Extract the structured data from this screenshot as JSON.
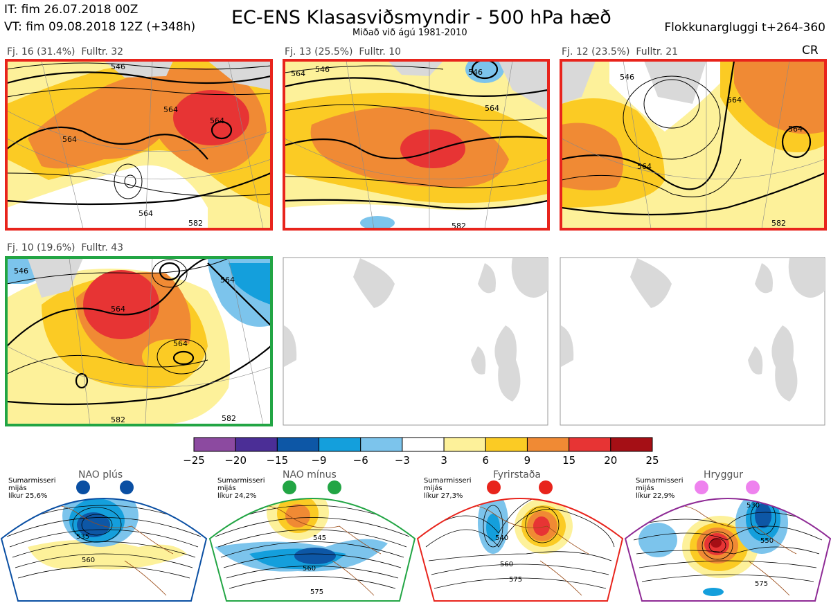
{
  "header": {
    "initial_time": "IT: fim 26.07.2018 00Z",
    "valid_time": "VT: fim 09.08.2018 12Z  (+348h)",
    "title": "EC-ENS Klasasviðsmyndir - 500 hPa hæð",
    "subtitle": "Miðað við ágú 1981-2010",
    "window": "Flokkunargluggi t+264-360",
    "badge": "CR"
  },
  "colors": {
    "map_frame_red": "#e8241c",
    "map_frame_green": "#22a544",
    "nao_plus": "#0a4fa3",
    "nao_minus": "#22a544",
    "blocking": "#e8241c",
    "ridge": "#8e2a95",
    "coastline": "#9a4b17"
  },
  "panels": [
    {
      "label": "Fj. 16 (31.4%)",
      "members": "Fulltr. 32",
      "frame": "red",
      "contours": [
        "546",
        "564",
        "564",
        "564",
        "564",
        "582"
      ]
    },
    {
      "label": "Fj. 13 (25.5%)",
      "members": "Fulltr. 10",
      "frame": "red",
      "contours": [
        "564",
        "546",
        "546",
        "564",
        "582"
      ]
    },
    {
      "label": "Fj. 12 (23.5%)",
      "members": "Fulltr. 21",
      "frame": "red",
      "contours": [
        "546",
        "564",
        "564",
        "564",
        "582"
      ]
    },
    {
      "label": "Fj. 10 (19.6%)",
      "members": "Fulltr. 43",
      "frame": "green",
      "contours": [
        "546",
        "564",
        "564",
        "564",
        "582",
        "582"
      ]
    }
  ],
  "colorbar": {
    "ticks": [
      "−25",
      "−20",
      "−15",
      "−9",
      "−6",
      "−3",
      "3",
      "6",
      "9",
      "15",
      "20",
      "25"
    ],
    "colors": [
      "#8c4aa0",
      "#4b2e96",
      "#0d57a6",
      "#149fdc",
      "#7cc4ec",
      "#ffffff",
      "#fdf19a",
      "#fbcb24",
      "#f08a34",
      "#e73434",
      "#a50f15"
    ]
  },
  "regimes": [
    {
      "name": "NAO plús",
      "season": "Sumarmisseri",
      "text": "mijás",
      "probability": "líkur 25,6%",
      "contours": [
        "535",
        "560"
      ]
    },
    {
      "name": "NAO mínus",
      "season": "Sumarmisseri",
      "text": "mijás",
      "probability": "líkur 24,2%",
      "contours": [
        "545",
        "560",
        "575"
      ]
    },
    {
      "name": "Fyrirstaða",
      "season": "Sumarmisseri",
      "text": "mijás",
      "probability": "líkur 27,3%",
      "contours": [
        "540",
        "560",
        "575"
      ]
    },
    {
      "name": "Hryggur",
      "season": "Sumarmisseri",
      "text": "mijás",
      "probability": "líkur 22,9%",
      "contours": [
        "530",
        "550",
        "575"
      ]
    }
  ],
  "chart_data": {
    "type": "heatmap",
    "title": "EC-ENS Klasasviðsmyndir - 500 hPa hæð",
    "subtitle": "Miðað við ágú 1981-2010",
    "clusters": [
      {
        "name": "Fj. 16",
        "probability_pct": 31.4,
        "members": 32
      },
      {
        "name": "Fj. 13",
        "probability_pct": 25.5,
        "members": 10
      },
      {
        "name": "Fj. 12",
        "probability_pct": 23.5,
        "members": 21
      },
      {
        "name": "Fj. 10",
        "probability_pct": 19.6,
        "members": 43
      }
    ],
    "anomaly_levels": [
      -25,
      -20,
      -15,
      -9,
      -6,
      -3,
      3,
      6,
      9,
      15,
      20,
      25
    ],
    "regimes": [
      {
        "name": "NAO plús",
        "probability_pct": 25.6
      },
      {
        "name": "NAO mínus",
        "probability_pct": 24.2
      },
      {
        "name": "Fyrirstaða",
        "probability_pct": 27.3
      },
      {
        "name": "Hryggur",
        "probability_pct": 22.9
      }
    ]
  }
}
